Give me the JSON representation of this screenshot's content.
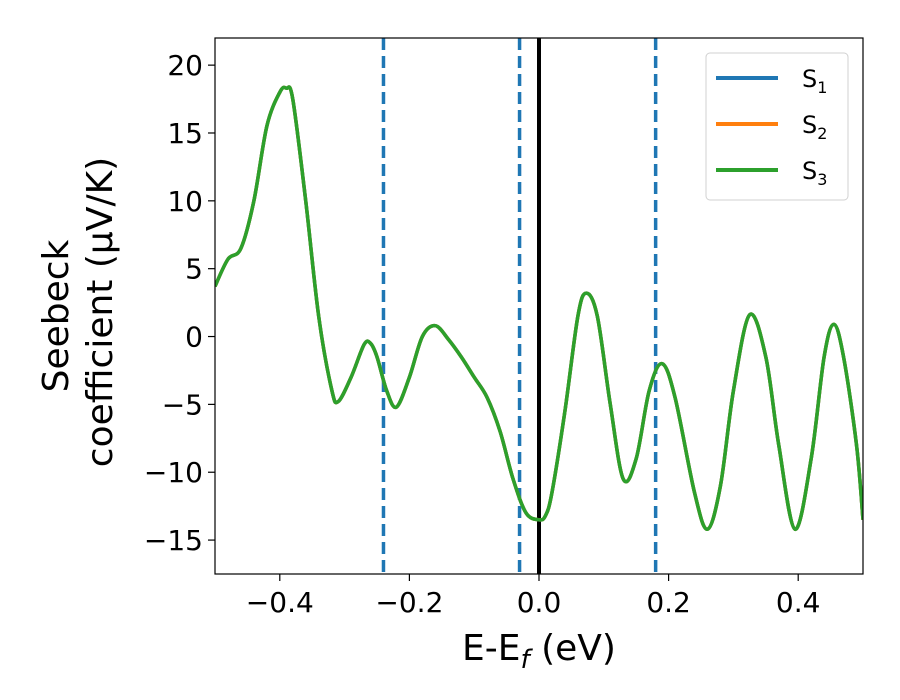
{
  "chart_data": {
    "type": "line",
    "xlabel": "E-E",
    "xlabel_sub": "f",
    "xlabel_unit": " (eV)",
    "ylabel_line1": "Seebeck",
    "ylabel_line2": "coefficient  (μV/K)",
    "xlim": [
      -0.5,
      0.5
    ],
    "ylim": [
      -17.5,
      22
    ],
    "xticks": [
      -0.4,
      -0.2,
      0.0,
      0.2,
      0.4
    ],
    "xtick_labels": [
      "−0.4",
      "−0.2",
      "0.0",
      "0.2",
      "0.4"
    ],
    "yticks": [
      -15,
      -10,
      -5,
      0,
      5,
      10,
      15,
      20
    ],
    "ytick_labels": [
      "−15",
      "−10",
      "−5",
      "0",
      "5",
      "10",
      "15",
      "20"
    ],
    "grid": false,
    "legend_position": "top-right",
    "vlines": [
      {
        "x": -0.24,
        "style": "dashed",
        "color": "#1f77b4"
      },
      {
        "x": -0.03,
        "style": "dashed",
        "color": "#1f77b4"
      },
      {
        "x": 0.0,
        "style": "solid",
        "color": "#000000"
      },
      {
        "x": 0.18,
        "style": "dashed",
        "color": "#1f77b4"
      }
    ],
    "series": [
      {
        "name": "S",
        "sub": "1",
        "color": "#1f77b4"
      },
      {
        "name": "S",
        "sub": "2",
        "color": "#ff7f0e"
      },
      {
        "name": "S",
        "sub": "3",
        "color": "#2ca02c"
      }
    ],
    "x": [
      -0.5,
      -0.48,
      -0.46,
      -0.44,
      -0.42,
      -0.4,
      -0.39,
      -0.38,
      -0.36,
      -0.34,
      -0.32,
      -0.31,
      -0.29,
      -0.27,
      -0.26,
      -0.25,
      -0.235,
      -0.22,
      -0.2,
      -0.18,
      -0.16,
      -0.14,
      -0.12,
      -0.1,
      -0.08,
      -0.06,
      -0.04,
      -0.02,
      0.0,
      0.01,
      0.02,
      0.04,
      0.06,
      0.073,
      0.09,
      0.11,
      0.13,
      0.15,
      0.17,
      0.19,
      0.21,
      0.24,
      0.26,
      0.28,
      0.3,
      0.325,
      0.35,
      0.37,
      0.395,
      0.42,
      0.44,
      0.455,
      0.47,
      0.49,
      0.5
    ],
    "y": [
      3.7,
      5.7,
      6.5,
      10.0,
      15.5,
      18.0,
      18.3,
      17.5,
      10.0,
      1.5,
      -3.9,
      -4.8,
      -3.0,
      -0.6,
      -0.5,
      -1.5,
      -4.0,
      -5.2,
      -3.0,
      0.0,
      0.8,
      -0.2,
      -1.5,
      -3.0,
      -4.5,
      -7.0,
      -10.5,
      -13.0,
      -13.5,
      -13.2,
      -11.5,
      -5.5,
      1.5,
      3.2,
      1.5,
      -5.0,
      -10.5,
      -9.0,
      -4.0,
      -2.0,
      -4.5,
      -11.5,
      -14.2,
      -11.0,
      -4.0,
      1.6,
      -1.5,
      -8.0,
      -14.2,
      -9.0,
      -1.5,
      0.9,
      -1.5,
      -8.0,
      -13.5
    ]
  }
}
